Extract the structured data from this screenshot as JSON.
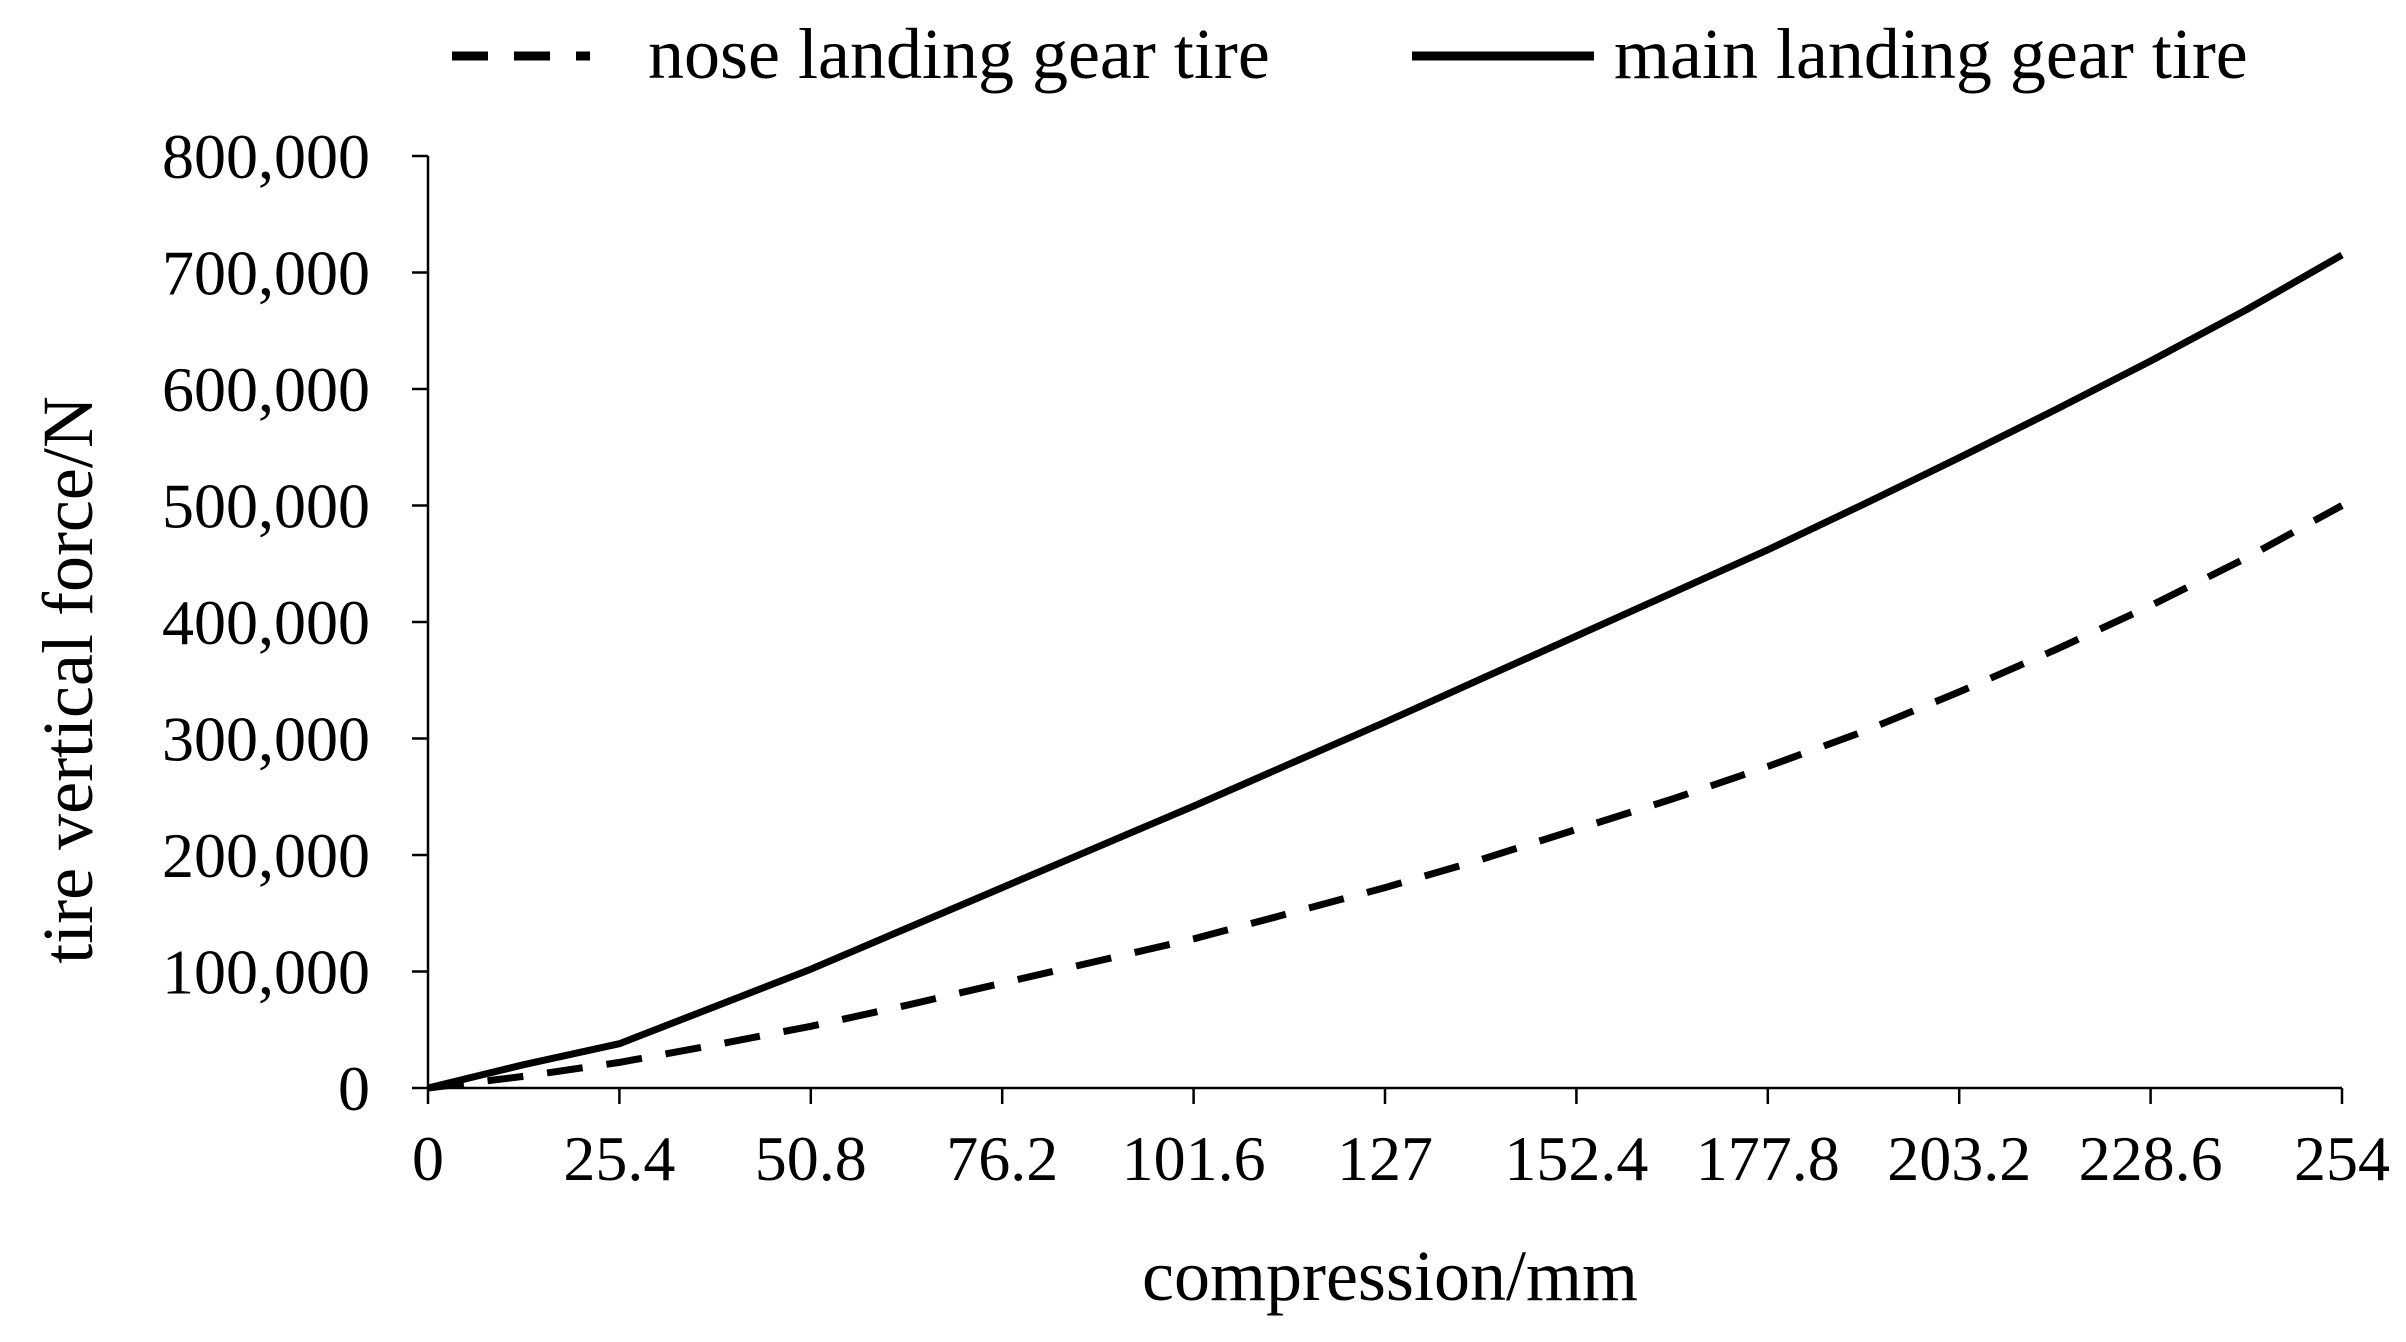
{
  "chart_data": {
    "type": "line",
    "title": "",
    "xlabel": "compression/mm",
    "ylabel": "tire vertical force/N",
    "x_ticks": [
      "0",
      "25.4",
      "50.8",
      "76.2",
      "101.6",
      "127",
      "152.4",
      "177.8",
      "203.2",
      "228.6",
      "254"
    ],
    "y_ticks": [
      "0",
      "100,000",
      "200,000",
      "300,000",
      "400,000",
      "500,000",
      "600,000",
      "700,000",
      "800,000"
    ],
    "xlim": [
      0,
      254
    ],
    "ylim": [
      0,
      800000
    ],
    "grid": false,
    "legend_position": "top",
    "series": [
      {
        "name": "nose landing gear tire",
        "style": "dashed",
        "color": "#000000",
        "x": [
          0,
          12.7,
          25.4,
          38.1,
          50.8,
          63.5,
          76.2,
          88.9,
          101.6,
          114.3,
          127,
          139.7,
          152.4,
          165.1,
          177.8,
          190.5,
          203.2,
          215.9,
          228.6,
          241.3,
          254
        ],
        "y": [
          0,
          10000,
          22000,
          37000,
          53000,
          71000,
          90000,
          109000,
          128000,
          150000,
          172000,
          196000,
          222000,
          248000,
          276000,
          306000,
          340000,
          376000,
          414000,
          455000,
          500000
        ]
      },
      {
        "name": "main landing gear tire",
        "style": "solid",
        "color": "#000000",
        "x": [
          0,
          12.7,
          25.4,
          38.1,
          50.8,
          63.5,
          76.2,
          88.9,
          101.6,
          114.3,
          127,
          139.7,
          152.4,
          165.1,
          177.8,
          190.5,
          203.2,
          215.9,
          228.6,
          241.3,
          254
        ],
        "y": [
          0,
          20000,
          38000,
          70000,
          102000,
          137000,
          172000,
          207000,
          242000,
          278000,
          314000,
          351000,
          388000,
          425000,
          462000,
          501000,
          541000,
          582000,
          624000,
          668000,
          715000
        ]
      }
    ]
  }
}
